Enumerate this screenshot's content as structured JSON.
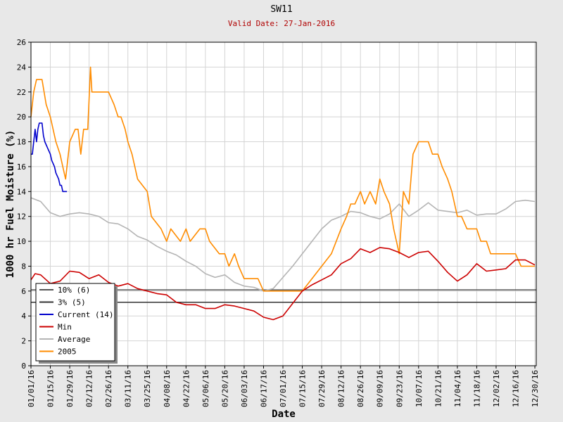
{
  "title": "SW11",
  "subtitle": "Valid Date: 27-Jan-2016",
  "chart_data": {
    "type": "line",
    "title": "SW11",
    "subtitle": "Valid Date: 27-Jan-2016",
    "xlabel": "Date",
    "ylabel": "1000 hr Fuel Moisture (%)",
    "ylim": [
      0,
      26
    ],
    "y_ticks": [
      0,
      2,
      4,
      6,
      8,
      10,
      12,
      14,
      16,
      18,
      20,
      22,
      24,
      26
    ],
    "x_range_days": [
      0,
      365
    ],
    "x_tick_labels": [
      "01/01/16",
      "01/15/16",
      "01/29/16",
      "02/12/16",
      "02/26/16",
      "03/11/16",
      "03/25/16",
      "04/08/16",
      "04/22/16",
      "05/06/16",
      "05/20/16",
      "06/03/16",
      "06/17/16",
      "07/01/16",
      "07/15/16",
      "07/29/16",
      "08/12/16",
      "08/26/16",
      "09/09/16",
      "09/23/16",
      "10/07/16",
      "10/21/16",
      "11/04/16",
      "11/18/16",
      "12/02/16",
      "12/16/16",
      "12/30/16"
    ],
    "grid": true,
    "legend_position": "bottom-left",
    "thresholds": [
      {
        "name": "10% (6)",
        "value": 6.1,
        "color": "#555555"
      },
      {
        "name": "3% (5)",
        "value": 5.1,
        "color": "#333333"
      }
    ],
    "series": [
      {
        "name": "Current (14)",
        "color": "#0000cc",
        "x": [
          "01/01/16",
          "01/02/16",
          "01/03/16",
          "01/04/16",
          "01/05/16",
          "01/06/16",
          "01/07/16",
          "01/09/16",
          "01/10/16",
          "01/11/16",
          "01/13/16",
          "01/15/16",
          "01/16/16",
          "01/18/16",
          "01/19/16",
          "01/21/16",
          "01/22/16",
          "01/23/16",
          "01/24/16",
          "01/26/16",
          "01/27/16"
        ],
        "y": [
          17,
          17,
          18,
          19,
          18,
          19,
          19.5,
          19.5,
          18.5,
          18,
          17.5,
          17,
          16.5,
          16,
          15.5,
          15,
          14.5,
          14.5,
          14,
          14,
          14
        ]
      },
      {
        "name": "Min",
        "color": "#cc0000",
        "x": [
          "01/01/16",
          "01/04/16",
          "01/08/16",
          "01/15/16",
          "01/22/16",
          "01/29/16",
          "02/05/16",
          "02/12/16",
          "02/19/16",
          "02/26/16",
          "03/04/16",
          "03/11/16",
          "03/18/16",
          "03/25/16",
          "04/01/16",
          "04/08/16",
          "04/15/16",
          "04/22/16",
          "04/29/16",
          "05/06/16",
          "05/13/16",
          "05/20/16",
          "05/27/16",
          "06/03/16",
          "06/10/16",
          "06/17/16",
          "06/24/16",
          "07/01/16",
          "07/08/16",
          "07/15/16",
          "07/22/16",
          "07/29/16",
          "08/05/16",
          "08/12/16",
          "08/19/16",
          "08/26/16",
          "09/02/16",
          "09/09/16",
          "09/16/16",
          "09/23/16",
          "09/30/16",
          "10/07/16",
          "10/14/16",
          "10/21/16",
          "10/28/16",
          "11/04/16",
          "11/11/16",
          "11/18/16",
          "11/25/16",
          "12/02/16",
          "12/09/16",
          "12/16/16",
          "12/23/16",
          "12/30/16"
        ],
        "y": [
          6.9,
          7.4,
          7.3,
          6.6,
          6.8,
          7.6,
          7.5,
          7.0,
          7.3,
          6.7,
          6.4,
          6.6,
          6.2,
          6.0,
          5.8,
          5.7,
          5.1,
          4.9,
          4.9,
          4.6,
          4.6,
          4.9,
          4.8,
          4.6,
          4.4,
          3.9,
          3.7,
          4.0,
          5.0,
          6.0,
          6.5,
          6.9,
          7.3,
          8.2,
          8.6,
          9.4,
          9.1,
          9.5,
          9.4,
          9.1,
          8.7,
          9.1,
          9.2,
          8.4,
          7.5,
          6.8,
          7.3,
          8.2,
          7.6,
          7.7,
          7.8,
          8.5,
          8.5,
          8.1
        ]
      },
      {
        "name": "Average",
        "color": "#b4b4b4",
        "x": [
          "01/01/16",
          "01/08/16",
          "01/15/16",
          "01/22/16",
          "01/29/16",
          "02/05/16",
          "02/12/16",
          "02/19/16",
          "02/26/16",
          "03/04/16",
          "03/11/16",
          "03/18/16",
          "03/25/16",
          "04/01/16",
          "04/08/16",
          "04/15/16",
          "04/22/16",
          "04/29/16",
          "05/06/16",
          "05/13/16",
          "05/20/16",
          "05/27/16",
          "06/03/16",
          "06/10/16",
          "06/17/16",
          "06/24/16",
          "07/01/16",
          "07/08/16",
          "07/15/16",
          "07/22/16",
          "07/29/16",
          "08/05/16",
          "08/12/16",
          "08/19/16",
          "08/26/16",
          "09/02/16",
          "09/09/16",
          "09/16/16",
          "09/23/16",
          "09/30/16",
          "10/07/16",
          "10/14/16",
          "10/21/16",
          "10/28/16",
          "11/04/16",
          "11/11/16",
          "11/18/16",
          "11/25/16",
          "12/02/16",
          "12/09/16",
          "12/16/16",
          "12/23/16",
          "12/30/16"
        ],
        "y": [
          13.5,
          13.2,
          12.3,
          12.0,
          12.2,
          12.3,
          12.2,
          12.0,
          11.5,
          11.4,
          11.0,
          10.4,
          10.1,
          9.6,
          9.2,
          8.9,
          8.4,
          8.0,
          7.4,
          7.1,
          7.3,
          6.7,
          6.4,
          6.3,
          6.0,
          6.2,
          7.1,
          8.0,
          9.0,
          10.0,
          11.0,
          11.7,
          12.0,
          12.4,
          12.3,
          12.0,
          11.8,
          12.2,
          13.0,
          12.0,
          12.5,
          13.1,
          12.5,
          12.4,
          12.3,
          12.5,
          12.1,
          12.2,
          12.2,
          12.6,
          13.2,
          13.3,
          13.2
        ]
      },
      {
        "name": "2005",
        "color": "#ff8c00",
        "x": [
          "01/01/16",
          "01/03/16",
          "01/05/16",
          "01/09/16",
          "01/12/16",
          "01/15/16",
          "01/19/16",
          "01/22/16",
          "01/24/16",
          "01/26/16",
          "01/29/16",
          "02/02/16",
          "02/04/16",
          "02/06/16",
          "02/08/16",
          "02/11/16",
          "02/13/16",
          "02/14/16",
          "02/18/16",
          "02/21/16",
          "02/26/16",
          "03/01/16",
          "03/04/16",
          "03/06/16",
          "03/09/16",
          "03/11/16",
          "03/14/16",
          "03/18/16",
          "03/25/16",
          "03/28/16",
          "04/04/16",
          "04/08/16",
          "04/11/16",
          "04/18/16",
          "04/22/16",
          "04/25/16",
          "05/02/16",
          "05/06/16",
          "05/09/16",
          "05/16/16",
          "05/20/16",
          "05/23/16",
          "05/27/16",
          "05/30/16",
          "06/03/16",
          "06/06/16",
          "06/13/16",
          "06/17/16",
          "06/24/16",
          "07/01/16",
          "07/08/16",
          "07/15/16",
          "07/22/16",
          "07/29/16",
          "08/05/16",
          "08/12/16",
          "08/16/16",
          "08/19/16",
          "08/22/16",
          "08/26/16",
          "08/29/16",
          "09/02/16",
          "09/06/16",
          "09/09/16",
          "09/12/16",
          "09/16/16",
          "09/19/16",
          "09/23/16",
          "09/26/16",
          "09/30/16",
          "10/03/16",
          "10/07/16",
          "10/10/16",
          "10/14/16",
          "10/17/16",
          "10/21/16",
          "10/24/16",
          "10/28/16",
          "10/31/16",
          "11/04/16",
          "11/07/16",
          "11/11/16",
          "11/14/16",
          "11/18/16",
          "11/21/16",
          "11/25/16",
          "11/28/16",
          "12/02/16",
          "12/05/16",
          "12/09/16",
          "12/13/16",
          "12/16/16",
          "12/20/16",
          "12/23/16",
          "12/27/16",
          "12/30/16"
        ],
        "y": [
          20,
          22,
          23,
          23,
          21,
          20,
          18,
          17,
          16,
          15,
          18,
          19,
          19,
          17,
          19,
          19,
          24,
          22,
          22,
          22,
          22,
          21,
          20,
          20,
          19,
          18,
          17,
          15,
          14,
          12,
          11,
          10,
          11,
          10,
          11,
          10,
          11,
          11,
          10,
          9,
          9,
          8,
          9,
          8,
          7,
          7,
          7,
          6,
          6,
          6,
          6,
          6,
          7,
          8,
          9,
          11,
          12,
          13,
          13,
          14,
          13,
          14,
          13,
          15,
          14,
          13,
          11,
          9,
          14,
          13,
          17,
          18,
          18,
          18,
          17,
          17,
          16,
          15,
          14,
          12,
          12,
          11,
          11,
          11,
          10,
          10,
          9,
          9,
          9,
          9,
          9,
          9,
          8,
          8,
          8,
          8
        ]
      }
    ]
  }
}
